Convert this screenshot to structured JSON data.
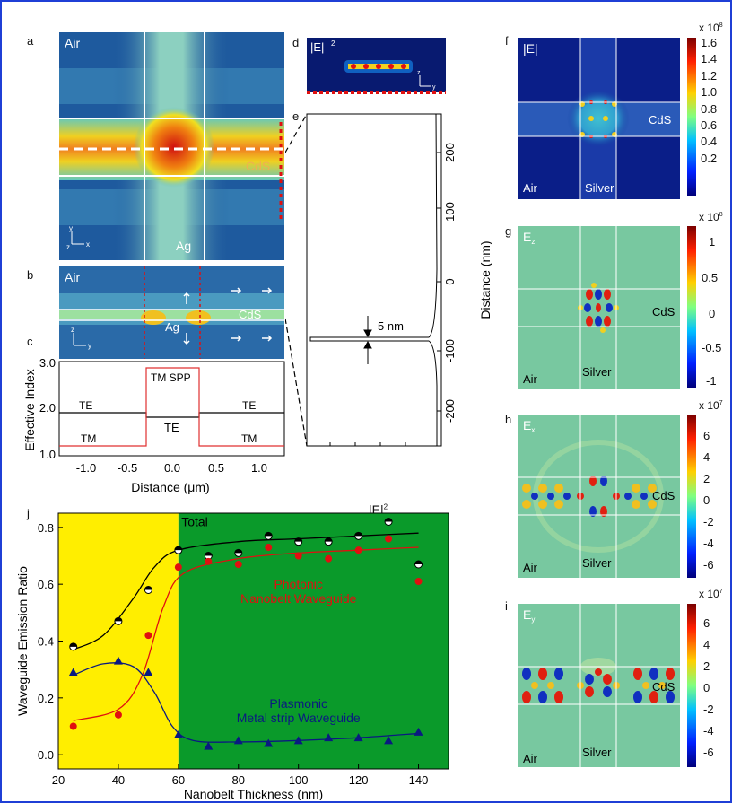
{
  "panel_letters": {
    "a": "a",
    "b": "b",
    "c": "c",
    "d": "d",
    "e": "e",
    "f": "f",
    "g": "g",
    "h": "h",
    "i": "i",
    "j": "j"
  },
  "panel_a": {
    "air": "Air",
    "cds": "CdS",
    "ag": "Ag",
    "axis_y": "y",
    "axis_x": "x",
    "axis_z": "z"
  },
  "panel_b": {
    "air": "Air",
    "cds": "CdS",
    "ag": "Ag",
    "axis_z": "z",
    "axis_y": "y"
  },
  "panel_c": {
    "ylabel": "Effective Index",
    "xlabel": "Distance (μm)",
    "yticks": [
      "3.0",
      "2.0",
      "1.0"
    ],
    "xticks": [
      "-1.0",
      "-0.5",
      "0.0",
      "0.5",
      "1.0"
    ],
    "labels": {
      "te_left": "TE",
      "tm_left": "TM",
      "tm_spp": "TM SPP",
      "te_center": "TE",
      "te_right": "TE",
      "tm_right": "TM"
    },
    "te_color": "#000000",
    "tm_color": "#e03030"
  },
  "panel_d": {
    "title": "|E|",
    "sup": "2",
    "axis_z": "z",
    "axis_y": "y"
  },
  "panel_e": {
    "ylabel": "Distance (nm)",
    "yticks": [
      "200",
      "100",
      "0",
      "-100",
      "-200"
    ],
    "annotation": "5 nm",
    "xlabel": "|E|",
    "xlabel_sup": "2"
  },
  "panel_f": {
    "title": "|E|",
    "air": "Air",
    "silver": "Silver",
    "cds": "CdS",
    "cb_exp": "x 10",
    "cb_exp_sup": "8",
    "cb_ticks": [
      "1.6",
      "1.4",
      "1.2",
      "1.0",
      "0.8",
      "0.6",
      "0.4",
      "0.2"
    ]
  },
  "panel_g": {
    "title": "E",
    "sub": "z",
    "air": "Air",
    "silver": "Silver",
    "cds": "CdS",
    "cb_exp": "x 10",
    "cb_exp_sup": "8",
    "cb_ticks": [
      "1",
      "0.5",
      "0",
      "-0.5",
      "-1"
    ]
  },
  "panel_h": {
    "title": "E",
    "sub": "x",
    "air": "Air",
    "silver": "Silver",
    "cds": "CdS",
    "cb_exp": "x 10",
    "cb_exp_sup": "7",
    "cb_ticks": [
      "6",
      "4",
      "2",
      "0",
      "-2",
      "-4",
      "-6"
    ]
  },
  "panel_i": {
    "title": "E",
    "sub": "y",
    "air": "Air",
    "silver": "Silver",
    "cds": "CdS",
    "cb_exp": "x 10",
    "cb_exp_sup": "7",
    "cb_ticks": [
      "6",
      "4",
      "2",
      "0",
      "-2",
      "-4",
      "-6"
    ]
  },
  "chart_data": {
    "type": "scatter",
    "xlabel": "Nanobelt Thickness (nm)",
    "ylabel": "Waveguide Emission Ratio",
    "xlim": [
      20,
      150
    ],
    "ylim": [
      -0.05,
      0.85
    ],
    "xticks": [
      "20",
      "40",
      "60",
      "80",
      "100",
      "120",
      "140"
    ],
    "yticks": [
      "0.0",
      "0.2",
      "0.4",
      "0.6",
      "0.8"
    ],
    "regions": [
      {
        "from": 20,
        "to": 60,
        "color": "#ffee00"
      },
      {
        "from": 60,
        "to": 150,
        "color": "#0a9a2a"
      }
    ],
    "series": [
      {
        "name": "Total",
        "color": "#000000",
        "marker": "circle",
        "x": [
          25,
          40,
          50,
          60,
          70,
          80,
          90,
          100,
          110,
          120,
          130,
          140
        ],
        "y": [
          0.38,
          0.47,
          0.58,
          0.72,
          0.7,
          0.71,
          0.77,
          0.75,
          0.75,
          0.77,
          0.82,
          0.67
        ],
        "fit": [
          [
            25,
            0.37
          ],
          [
            35,
            0.42
          ],
          [
            45,
            0.55
          ],
          [
            52,
            0.66
          ],
          [
            60,
            0.72
          ],
          [
            80,
            0.75
          ],
          [
            100,
            0.76
          ],
          [
            120,
            0.77
          ],
          [
            140,
            0.78
          ]
        ]
      },
      {
        "name": "Photonic Nanobelt Waveguide",
        "color": "#e01010",
        "marker": "circle",
        "x": [
          25,
          40,
          50,
          60,
          70,
          80,
          90,
          100,
          110,
          120,
          130,
          140
        ],
        "y": [
          0.1,
          0.14,
          0.42,
          0.66,
          0.68,
          0.67,
          0.73,
          0.7,
          0.69,
          0.72,
          0.76,
          0.61
        ],
        "fit": [
          [
            25,
            0.12
          ],
          [
            40,
            0.16
          ],
          [
            48,
            0.28
          ],
          [
            55,
            0.52
          ],
          [
            62,
            0.64
          ],
          [
            80,
            0.69
          ],
          [
            100,
            0.71
          ],
          [
            120,
            0.72
          ],
          [
            140,
            0.73
          ]
        ]
      },
      {
        "name": "Plasmonic Metal strip Waveguide",
        "color": "#0a1a80",
        "marker": "triangle",
        "x": [
          25,
          40,
          50,
          60,
          70,
          80,
          90,
          100,
          110,
          120,
          130,
          140
        ],
        "y": [
          0.29,
          0.33,
          0.29,
          0.07,
          0.03,
          0.05,
          0.04,
          0.05,
          0.06,
          0.06,
          0.05,
          0.08
        ],
        "fit": [
          [
            25,
            0.28
          ],
          [
            35,
            0.32
          ],
          [
            45,
            0.31
          ],
          [
            52,
            0.22
          ],
          [
            58,
            0.1
          ],
          [
            65,
            0.05
          ],
          [
            80,
            0.045
          ],
          [
            100,
            0.05
          ],
          [
            120,
            0.06
          ],
          [
            140,
            0.075
          ]
        ]
      }
    ],
    "annotations": {
      "total": "Total",
      "photonic1": "Photonic",
      "photonic2": "Nanobelt Waveguide",
      "plasmonic1": "Plasmonic",
      "plasmonic2": "Metal strip Waveguide"
    }
  }
}
